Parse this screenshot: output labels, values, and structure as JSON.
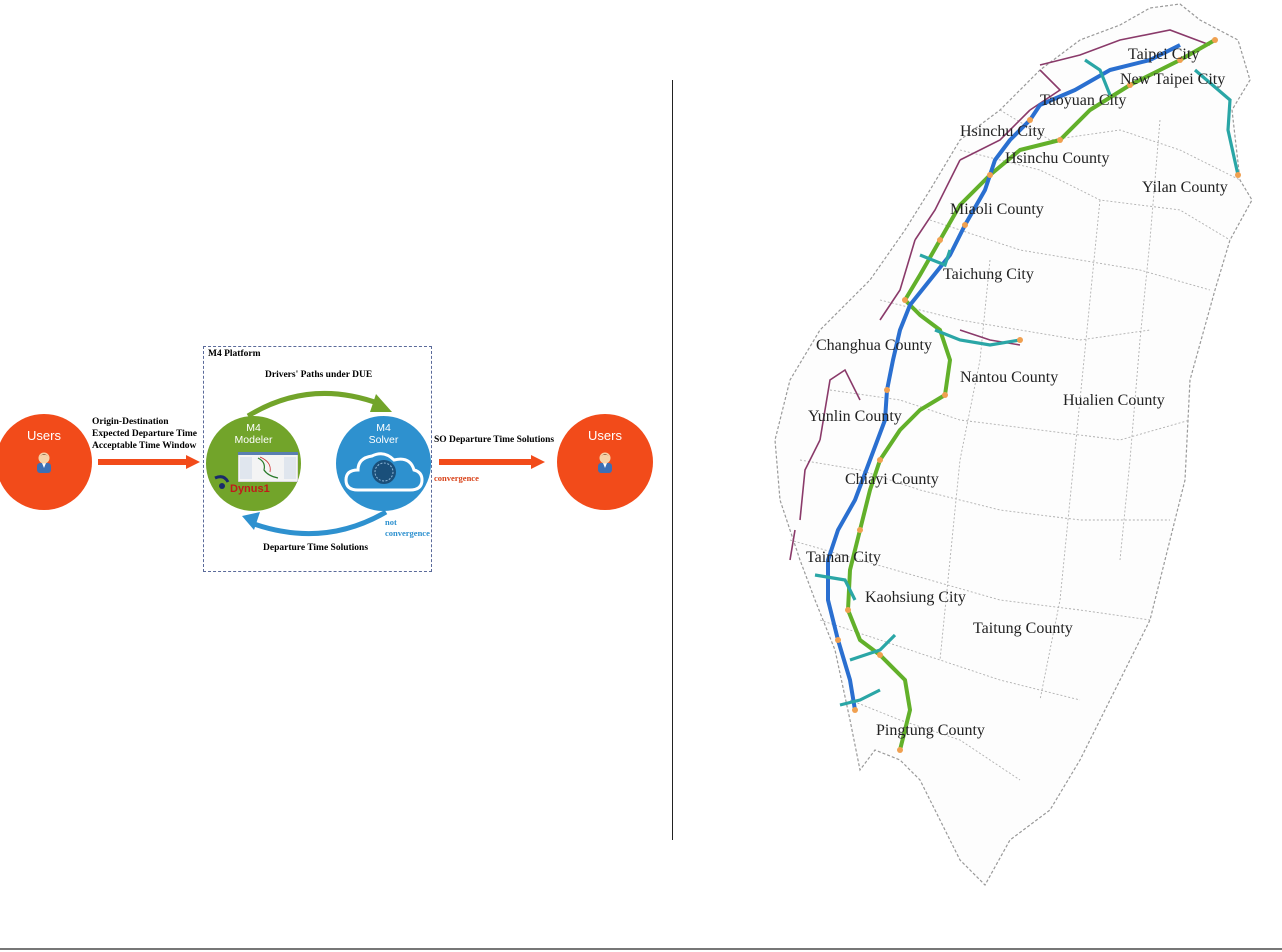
{
  "diagram": {
    "platform_title": "M4 Platform",
    "users_left": "Users",
    "users_right": "Users",
    "inputs": [
      "Origin-Destination",
      "Expected Departure Time",
      "Acceptable Time Window"
    ],
    "modeler_label_1": "M4",
    "modeler_label_2": "Modeler",
    "solver_label_1": "M4",
    "solver_label_2": "Solver",
    "dynus_label": "Dynus1",
    "top_arrow_label": "Drivers' Paths under DUE",
    "bottom_arrow_label": "Departure Time Solutions",
    "output_label": "SO Departure Time Solutions",
    "convergence": "convergence",
    "not_convergence_1": "not",
    "not_convergence_2": "convergence",
    "colors": {
      "orange": "#f24b1a",
      "green": "#72a42a",
      "blue": "#2e91cf"
    }
  },
  "map": {
    "labels": {
      "taipei_city": "Taipei City",
      "new_taipei_city": "New Taipei City",
      "taoyuan_city": "Taoyuan City",
      "hsinchu_city": "Hsinchu City",
      "hsinchu_county": "Hsinchu County",
      "yilan_county": "Yilan County",
      "miaoli_county": "Miaoli County",
      "taichung_city": "Taichung City",
      "changhua_county": "Changhua County",
      "nantou_county": "Nantou County",
      "hualien_county": "Hualien County",
      "yunlin_county": "Yunlin County",
      "chiayi_county": "Chiayi County",
      "tainan_city": "Tainan City",
      "kaohsiung_city": "Kaohsiung City",
      "taitung_county": "Taitung County",
      "pingtung_county": "Pingtung County"
    },
    "colors": {
      "freeway_blue": "#2a6fd0",
      "freeway_green": "#62b02a",
      "freeway_teal": "#2aa6a6",
      "road_purple": "#8a3a6a",
      "node_orange": "#f0a050",
      "boundary_gray": "#9a9a9a"
    }
  }
}
